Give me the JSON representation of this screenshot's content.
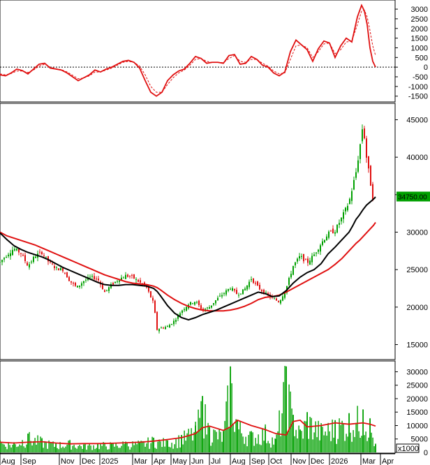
{
  "chart_data": [
    {
      "type": "line",
      "panel": "oscillator",
      "title": "",
      "ylim": [
        -1800,
        3400
      ],
      "yticks": [
        3000,
        2500,
        2000,
        1500,
        1000,
        500,
        0,
        -500,
        -1000,
        -1500
      ],
      "zero_line": "dashed",
      "colors": {
        "main": "#e01010",
        "signal": "#e01010"
      },
      "x": [
        0,
        8,
        16,
        24,
        32,
        40,
        48,
        56,
        64,
        72,
        80,
        88,
        96,
        104,
        112,
        120,
        128,
        136,
        144,
        152,
        160,
        168,
        176,
        184,
        192,
        200,
        208,
        216,
        224,
        232,
        240,
        248,
        256,
        264,
        272,
        280,
        288,
        296,
        304,
        312,
        320,
        328,
        336,
        344,
        352,
        360,
        368,
        376,
        384,
        392,
        400,
        408,
        416,
        424,
        432,
        440,
        448,
        456,
        464,
        472,
        480,
        488,
        496,
        504,
        512,
        518,
        522,
        526,
        530,
        534,
        538
      ],
      "series": [
        {
          "name": "",
          "style": "solid",
          "values": [
            -400,
            -450,
            -300,
            -100,
            -180,
            -350,
            -100,
            150,
            200,
            -50,
            -100,
            -150,
            -300,
            -500,
            -700,
            -550,
            -400,
            -150,
            -250,
            -100,
            0,
            150,
            300,
            350,
            250,
            -50,
            -700,
            -1300,
            -1500,
            -1300,
            -700,
            -400,
            -200,
            -100,
            200,
            550,
            450,
            200,
            250,
            250,
            200,
            600,
            650,
            150,
            200,
            550,
            400,
            100,
            0,
            -300,
            -450,
            -250,
            800,
            1400,
            1150,
            900,
            300,
            950,
            1350,
            1250,
            500,
            1100,
            1500,
            1300,
            2600,
            3200,
            2900,
            2200,
            1000,
            300,
            0
          ]
        },
        {
          "name": "",
          "style": "dashed",
          "values": [
            -350,
            -400,
            -330,
            -200,
            -200,
            -280,
            -150,
            50,
            150,
            0,
            -80,
            -130,
            -250,
            -420,
            -600,
            -560,
            -450,
            -250,
            -250,
            -150,
            -50,
            100,
            250,
            300,
            250,
            50,
            -400,
            -1000,
            -1300,
            -1300,
            -900,
            -550,
            -300,
            -150,
            100,
            400,
            450,
            300,
            250,
            250,
            230,
            450,
            600,
            300,
            250,
            400,
            400,
            200,
            50,
            -200,
            -350,
            -300,
            400,
            1100,
            1150,
            1000,
            500,
            800,
            1200,
            1250,
            700,
            900,
            1300,
            1350,
            2200,
            2900,
            2950,
            2600,
            1900,
            1100,
            600
          ]
        }
      ]
    },
    {
      "type": "candlestick",
      "panel": "price",
      "title": "",
      "ylim": [
        13000,
        47000
      ],
      "yticks": [
        45000,
        40000,
        35000,
        30000,
        25000,
        20000,
        15000
      ],
      "grid": true,
      "last_price_label": "34750.00",
      "colors": {
        "up": "#00a000",
        "down": "#e01010",
        "ma_fast": "#000000",
        "ma_slow": "#e01010",
        "price_tag": "#00a000"
      },
      "x": [
        0,
        10,
        20,
        30,
        40,
        50,
        60,
        70,
        80,
        90,
        100,
        110,
        120,
        130,
        140,
        150,
        160,
        170,
        180,
        190,
        200,
        210,
        220,
        225,
        230,
        240,
        250,
        260,
        270,
        280,
        290,
        300,
        310,
        320,
        330,
        340,
        350,
        360,
        370,
        380,
        390,
        400,
        410,
        420,
        430,
        440,
        450,
        460,
        470,
        480,
        490,
        500,
        505,
        510,
        515,
        520,
        525,
        530,
        535,
        538
      ],
      "series": [
        {
          "name": "",
          "role": "price_close",
          "values": [
            26000,
            27000,
            27800,
            27200,
            25500,
            26800,
            27300,
            26000,
            25200,
            25000,
            23500,
            22600,
            23500,
            24000,
            23800,
            22000,
            23000,
            23700,
            24200,
            24000,
            23300,
            22600,
            20500,
            17000,
            17200,
            17400,
            18200,
            19500,
            20400,
            20800,
            19600,
            20000,
            21000,
            21800,
            22600,
            21700,
            22300,
            23800,
            22600,
            21800,
            21200,
            20700,
            22500,
            25500,
            26800,
            25900,
            27000,
            28500,
            29800,
            30200,
            32000,
            34000,
            36000,
            38000,
            41000,
            44500,
            40000,
            37000,
            34000,
            34750
          ]
        },
        {
          "name": "",
          "role": "ma_fast",
          "values": [
            29900,
            29000,
            28200,
            27700,
            27300,
            27000,
            26700,
            26300,
            25800,
            25300,
            24900,
            24500,
            24100,
            23700,
            23300,
            23000,
            22900,
            22900,
            23000,
            23000,
            22900,
            22800,
            22500,
            22100,
            21500,
            20200,
            19200,
            18600,
            18300,
            18600,
            19000,
            19300,
            19600,
            20000,
            20400,
            20800,
            21200,
            21600,
            22000,
            21800,
            21400,
            21500,
            22200,
            23200,
            24000,
            24600,
            25000,
            25800,
            27100,
            28000,
            29000,
            30000,
            30800,
            31700,
            32300,
            33000,
            33600,
            34000,
            34400,
            34700
          ]
        },
        {
          "name": "",
          "role": "ma_slow",
          "values": [
            30000,
            29500,
            29200,
            28900,
            28600,
            28300,
            27900,
            27500,
            27100,
            26700,
            26300,
            25900,
            25500,
            25100,
            24700,
            24300,
            24000,
            23700,
            23400,
            23200,
            23100,
            23000,
            22800,
            22600,
            22300,
            21600,
            21000,
            20500,
            20100,
            19800,
            19600,
            19500,
            19500,
            19500,
            19600,
            19800,
            20100,
            20500,
            21000,
            21300,
            21400,
            21600,
            22000,
            22500,
            23000,
            23500,
            24000,
            24500,
            25000,
            25700,
            26500,
            27500,
            28000,
            28500,
            28900,
            29400,
            29900,
            30400,
            30900,
            31300
          ]
        }
      ]
    },
    {
      "type": "bar",
      "panel": "volume",
      "title": "",
      "ylim": [
        0,
        33500
      ],
      "yticks": [
        30000,
        25000,
        20000,
        15000,
        10000,
        5000,
        0
      ],
      "unit_label": "x1000",
      "colors": {
        "bars": "#00a000",
        "ma": "#e01010"
      },
      "x": [
        0,
        20,
        40,
        60,
        80,
        100,
        120,
        140,
        160,
        180,
        200,
        220,
        240,
        260,
        280,
        290,
        300,
        320,
        330,
        340,
        360,
        380,
        395,
        410,
        420,
        430,
        440,
        460,
        480,
        500,
        520,
        530,
        538
      ],
      "values": [
        4500,
        3800,
        7000,
        5000,
        3500,
        4200,
        3000,
        3500,
        3500,
        4000,
        4000,
        5500,
        4500,
        6500,
        10000,
        21000,
        9500,
        8000,
        32000,
        12000,
        7500,
        9500,
        5000,
        32000,
        14000,
        8500,
        15000,
        10000,
        12000,
        14500,
        16000,
        12500,
        3000
      ],
      "ma_values": [
        3800,
        3500,
        3800,
        4000,
        3500,
        3200,
        3300,
        3300,
        3400,
        3600,
        3800,
        4200,
        4800,
        5500,
        7000,
        9200,
        9800,
        8200,
        9500,
        12000,
        10000,
        8500,
        7000,
        6500,
        11500,
        12000,
        9500,
        10000,
        11000,
        10500,
        11000,
        10500,
        9800
      ]
    }
  ],
  "x_axis": {
    "labels": [
      {
        "text": "Aug",
        "x": 0
      },
      {
        "text": "Sep",
        "x": 30
      },
      {
        "text": "Nov",
        "x": 85
      },
      {
        "text": "Dec",
        "x": 115
      },
      {
        "text": "2025",
        "x": 143
      },
      {
        "text": "Mar",
        "x": 190
      },
      {
        "text": "Apr",
        "x": 218
      },
      {
        "text": "May",
        "x": 245
      },
      {
        "text": "Jun",
        "x": 272
      },
      {
        "text": "Jul",
        "x": 300
      },
      {
        "text": "Aug",
        "x": 330
      },
      {
        "text": "Sep",
        "x": 358
      },
      {
        "text": "Oct",
        "x": 385
      },
      {
        "text": "Nov",
        "x": 417
      },
      {
        "text": "Dec",
        "x": 443
      },
      {
        "text": "2026",
        "x": 472
      },
      {
        "text": "Mar",
        "x": 517
      },
      {
        "text": "Apr",
        "x": 545
      }
    ]
  }
}
